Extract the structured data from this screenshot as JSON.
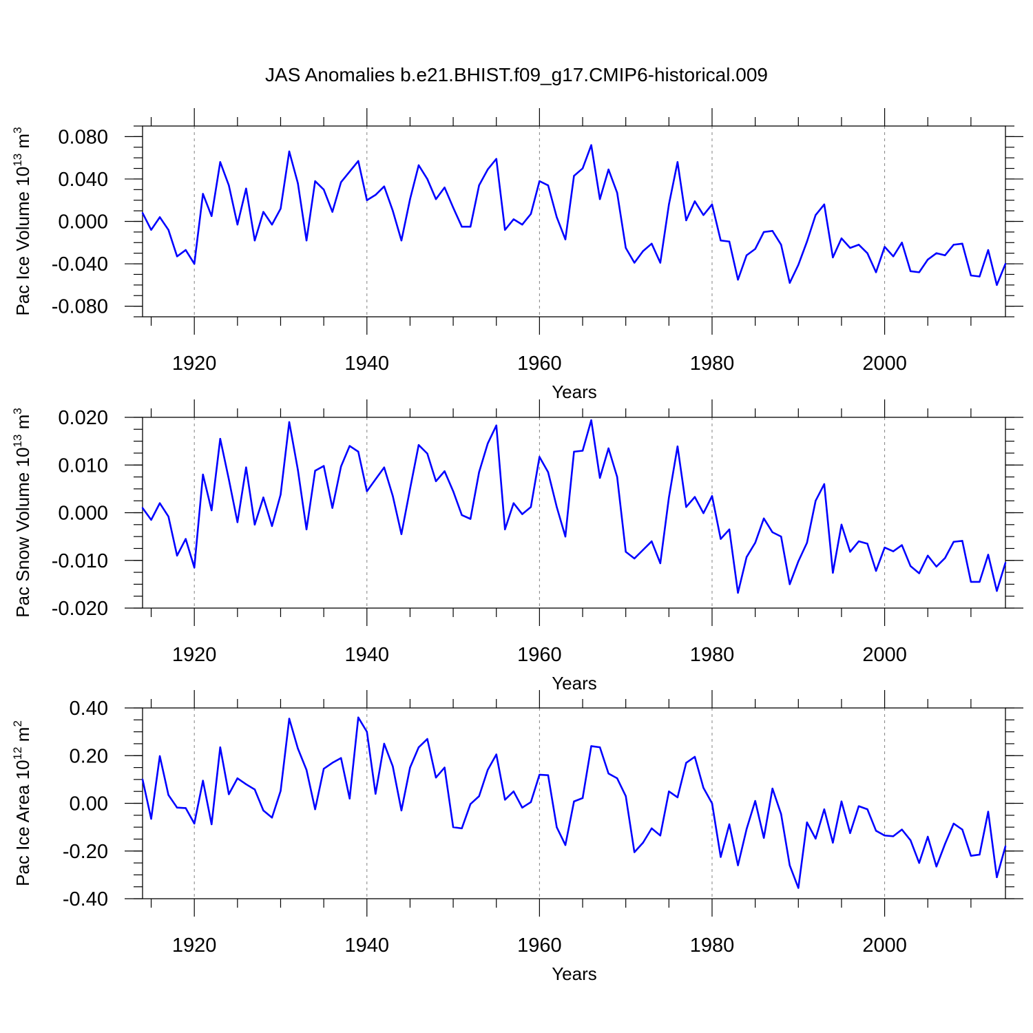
{
  "title": "JAS Anomalies b.e21.BHIST.f09_g17.CMIP6-historical.009",
  "colors": {
    "line": "#0000ff",
    "axis": "#000000",
    "grid": "#808080"
  },
  "chart_data": [
    {
      "type": "line",
      "title": "JAS Anomalies b.e21.BHIST.f09_g17.CMIP6-historical.009",
      "xlabel": "Years",
      "ylabel": {
        "main": "Pac Ice Volume 10",
        "sup": "13",
        "unit": " m",
        "unit_sup": "3"
      },
      "xlim": [
        1914,
        2014
      ],
      "ylim": [
        -0.09,
        0.09
      ],
      "xticks": [
        1920,
        1940,
        1960,
        1980,
        2000
      ],
      "xtick_labels": [
        "1920",
        "1940",
        "1960",
        "1980",
        "2000"
      ],
      "yticks": [
        -0.08,
        -0.04,
        0.0,
        0.04,
        0.08
      ],
      "ytick_labels": [
        "-0.080",
        "-0.040",
        "0.000",
        "0.040",
        "0.080"
      ],
      "grid": "vertical dashed at major x ticks",
      "x": [
        1914,
        1915,
        1916,
        1917,
        1918,
        1919,
        1920,
        1921,
        1922,
        1923,
        1924,
        1925,
        1926,
        1927,
        1928,
        1929,
        1930,
        1931,
        1932,
        1933,
        1934,
        1935,
        1936,
        1937,
        1938,
        1939,
        1940,
        1941,
        1942,
        1943,
        1944,
        1945,
        1946,
        1947,
        1948,
        1949,
        1950,
        1951,
        1952,
        1953,
        1954,
        1955,
        1956,
        1957,
        1958,
        1959,
        1960,
        1961,
        1962,
        1963,
        1964,
        1965,
        1966,
        1967,
        1968,
        1969,
        1970,
        1971,
        1972,
        1973,
        1974,
        1975,
        1976,
        1977,
        1978,
        1979,
        1980,
        1981,
        1982,
        1983,
        1984,
        1985,
        1986,
        1987,
        1988,
        1989,
        1990,
        1991,
        1992,
        1993,
        1994,
        1995,
        1996,
        1997,
        1998,
        1999,
        2000,
        2001,
        2002,
        2003,
        2004,
        2005,
        2006,
        2007,
        2008,
        2009,
        2010,
        2011,
        2012,
        2013,
        2014
      ],
      "series": [
        {
          "name": "Pac Ice Volume",
          "values": [
            0.008,
            -0.008,
            0.004,
            -0.008,
            -0.033,
            -0.027,
            -0.04,
            0.026,
            0.005,
            0.056,
            0.034,
            -0.003,
            0.031,
            -0.018,
            0.009,
            -0.003,
            0.012,
            0.066,
            0.036,
            -0.018,
            0.038,
            0.03,
            0.009,
            0.037,
            0.047,
            0.057,
            0.02,
            0.025,
            0.033,
            0.01,
            -0.018,
            0.021,
            0.053,
            0.04,
            0.021,
            0.032,
            0.013,
            -0.005,
            -0.005,
            0.034,
            0.049,
            0.059,
            -0.008,
            0.002,
            -0.003,
            0.007,
            0.038,
            0.034,
            0.004,
            -0.017,
            0.043,
            0.05,
            0.072,
            0.021,
            0.049,
            0.027,
            -0.025,
            -0.039,
            -0.028,
            -0.021,
            -0.039,
            0.016,
            0.056,
            0.001,
            0.019,
            0.006,
            0.016,
            -0.018,
            -0.019,
            -0.055,
            -0.032,
            -0.026,
            -0.01,
            -0.009,
            -0.022,
            -0.058,
            -0.041,
            -0.019,
            0.006,
            0.016,
            -0.034,
            -0.016,
            -0.025,
            -0.022,
            -0.03,
            -0.048,
            -0.024,
            -0.033,
            -0.02,
            -0.047,
            -0.048,
            -0.036,
            -0.03,
            -0.032,
            -0.022,
            -0.021,
            -0.051,
            -0.052,
            -0.027,
            -0.06,
            -0.04
          ]
        }
      ]
    },
    {
      "type": "line",
      "xlabel": "Years",
      "ylabel": {
        "main": "Pac Snow Volume 10",
        "sup": "13",
        "unit": " m",
        "unit_sup": "3"
      },
      "xlim": [
        1914,
        2014
      ],
      "ylim": [
        -0.02,
        0.02
      ],
      "xticks": [
        1920,
        1940,
        1960,
        1980,
        2000
      ],
      "xtick_labels": [
        "1920",
        "1940",
        "1960",
        "1980",
        "2000"
      ],
      "yticks": [
        -0.02,
        -0.01,
        0.0,
        0.01,
        0.02
      ],
      "ytick_labels": [
        "-0.020",
        "-0.010",
        "0.000",
        "0.010",
        "0.020"
      ],
      "grid": "vertical dashed at major x ticks",
      "x": [
        1914,
        1915,
        1916,
        1917,
        1918,
        1919,
        1920,
        1921,
        1922,
        1923,
        1924,
        1925,
        1926,
        1927,
        1928,
        1929,
        1930,
        1931,
        1932,
        1933,
        1934,
        1935,
        1936,
        1937,
        1938,
        1939,
        1940,
        1941,
        1942,
        1943,
        1944,
        1945,
        1946,
        1947,
        1948,
        1949,
        1950,
        1951,
        1952,
        1953,
        1954,
        1955,
        1956,
        1957,
        1958,
        1959,
        1960,
        1961,
        1962,
        1963,
        1964,
        1965,
        1966,
        1967,
        1968,
        1969,
        1970,
        1971,
        1972,
        1973,
        1974,
        1975,
        1976,
        1977,
        1978,
        1979,
        1980,
        1981,
        1982,
        1983,
        1984,
        1985,
        1986,
        1987,
        1988,
        1989,
        1990,
        1991,
        1992,
        1993,
        1994,
        1995,
        1996,
        1997,
        1998,
        1999,
        2000,
        2001,
        2002,
        2003,
        2004,
        2005,
        2006,
        2007,
        2008,
        2009,
        2010,
        2011,
        2012,
        2013,
        2014
      ],
      "series": [
        {
          "name": "Pac Snow Volume",
          "values": [
            0.001,
            -0.0015,
            0.002,
            -0.0008,
            -0.009,
            -0.0055,
            -0.0115,
            0.008,
            0.0005,
            0.0155,
            0.007,
            -0.002,
            0.0095,
            -0.0025,
            0.0032,
            -0.0028,
            0.0038,
            0.019,
            0.009,
            -0.0035,
            0.0088,
            0.0098,
            0.001,
            0.0097,
            0.014,
            0.0128,
            0.0045,
            0.007,
            0.0095,
            0.0035,
            -0.0045,
            0.005,
            0.0142,
            0.0124,
            0.0066,
            0.0087,
            0.0045,
            -0.0005,
            -0.0013,
            0.0085,
            0.0145,
            0.0183,
            -0.0035,
            0.002,
            -0.0003,
            0.0012,
            0.0117,
            0.0085,
            0.0012,
            -0.005,
            0.0128,
            0.013,
            0.0194,
            0.0073,
            0.0135,
            0.0075,
            -0.0082,
            -0.0096,
            -0.0078,
            -0.006,
            -0.0106,
            0.0032,
            0.0139,
            0.0012,
            0.0033,
            -0.0001,
            0.0035,
            -0.0055,
            -0.0035,
            -0.0168,
            -0.0093,
            -0.0063,
            -0.0012,
            -0.0041,
            -0.005,
            -0.015,
            -0.0102,
            -0.0063,
            0.0025,
            0.006,
            -0.0126,
            -0.0025,
            -0.0082,
            -0.006,
            -0.0065,
            -0.0122,
            -0.0073,
            -0.0081,
            -0.0068,
            -0.0112,
            -0.0127,
            -0.009,
            -0.0113,
            -0.0095,
            -0.0061,
            -0.0059,
            -0.0145,
            -0.0145,
            -0.0088,
            -0.0164,
            -0.0105
          ]
        }
      ]
    },
    {
      "type": "line",
      "xlabel": "Years",
      "ylabel": {
        "main": "Pac Ice Area 10",
        "sup": "12",
        "unit": " m",
        "unit_sup": "2"
      },
      "xlim": [
        1914,
        2014
      ],
      "ylim": [
        -0.4,
        0.4
      ],
      "xticks": [
        1920,
        1940,
        1960,
        1980,
        2000
      ],
      "xtick_labels": [
        "1920",
        "1940",
        "1960",
        "1980",
        "2000"
      ],
      "yticks": [
        -0.4,
        -0.2,
        0.0,
        0.2,
        0.4
      ],
      "ytick_labels": [
        "-0.40",
        "-0.20",
        "0.00",
        "0.20",
        "0.40"
      ],
      "grid": "vertical dashed at major x ticks",
      "x": [
        1914,
        1915,
        1916,
        1917,
        1918,
        1919,
        1920,
        1921,
        1922,
        1923,
        1924,
        1925,
        1926,
        1927,
        1928,
        1929,
        1930,
        1931,
        1932,
        1933,
        1934,
        1935,
        1936,
        1937,
        1938,
        1939,
        1940,
        1941,
        1942,
        1943,
        1944,
        1945,
        1946,
        1947,
        1948,
        1949,
        1950,
        1951,
        1952,
        1953,
        1954,
        1955,
        1956,
        1957,
        1958,
        1959,
        1960,
        1961,
        1962,
        1963,
        1964,
        1965,
        1966,
        1967,
        1968,
        1969,
        1970,
        1971,
        1972,
        1973,
        1974,
        1975,
        1976,
        1977,
        1978,
        1979,
        1980,
        1981,
        1982,
        1983,
        1984,
        1985,
        1986,
        1987,
        1988,
        1989,
        1990,
        1991,
        1992,
        1993,
        1994,
        1995,
        1996,
        1997,
        1998,
        1999,
        2000,
        2001,
        2002,
        2003,
        2004,
        2005,
        2006,
        2007,
        2008,
        2009,
        2010,
        2011,
        2012,
        2013,
        2014
      ],
      "series": [
        {
          "name": "Pac Ice Area",
          "values": [
            0.1,
            -0.065,
            0.198,
            0.035,
            -0.018,
            -0.02,
            -0.085,
            0.095,
            -0.088,
            0.235,
            0.038,
            0.105,
            0.08,
            0.058,
            -0.03,
            -0.06,
            0.052,
            0.355,
            0.23,
            0.14,
            -0.025,
            0.145,
            0.17,
            0.19,
            0.02,
            0.36,
            0.3,
            0.04,
            0.25,
            0.155,
            -0.03,
            0.15,
            0.235,
            0.27,
            0.108,
            0.15,
            -0.1,
            -0.105,
            -0.003,
            0.03,
            0.14,
            0.205,
            0.015,
            0.05,
            -0.018,
            0.005,
            0.12,
            0.118,
            -0.1,
            -0.175,
            0.008,
            0.022,
            0.24,
            0.235,
            0.125,
            0.105,
            0.03,
            -0.205,
            -0.165,
            -0.105,
            -0.135,
            0.05,
            0.025,
            0.17,
            0.195,
            0.065,
            0.0,
            -0.225,
            -0.088,
            -0.26,
            -0.108,
            0.01,
            -0.145,
            0.062,
            -0.045,
            -0.26,
            -0.355,
            -0.08,
            -0.148,
            -0.025,
            -0.165,
            0.008,
            -0.125,
            -0.012,
            -0.025,
            -0.115,
            -0.135,
            -0.138,
            -0.11,
            -0.155,
            -0.25,
            -0.14,
            -0.265,
            -0.17,
            -0.085,
            -0.11,
            -0.22,
            -0.215,
            -0.035,
            -0.31,
            -0.18
          ]
        }
      ]
    }
  ]
}
